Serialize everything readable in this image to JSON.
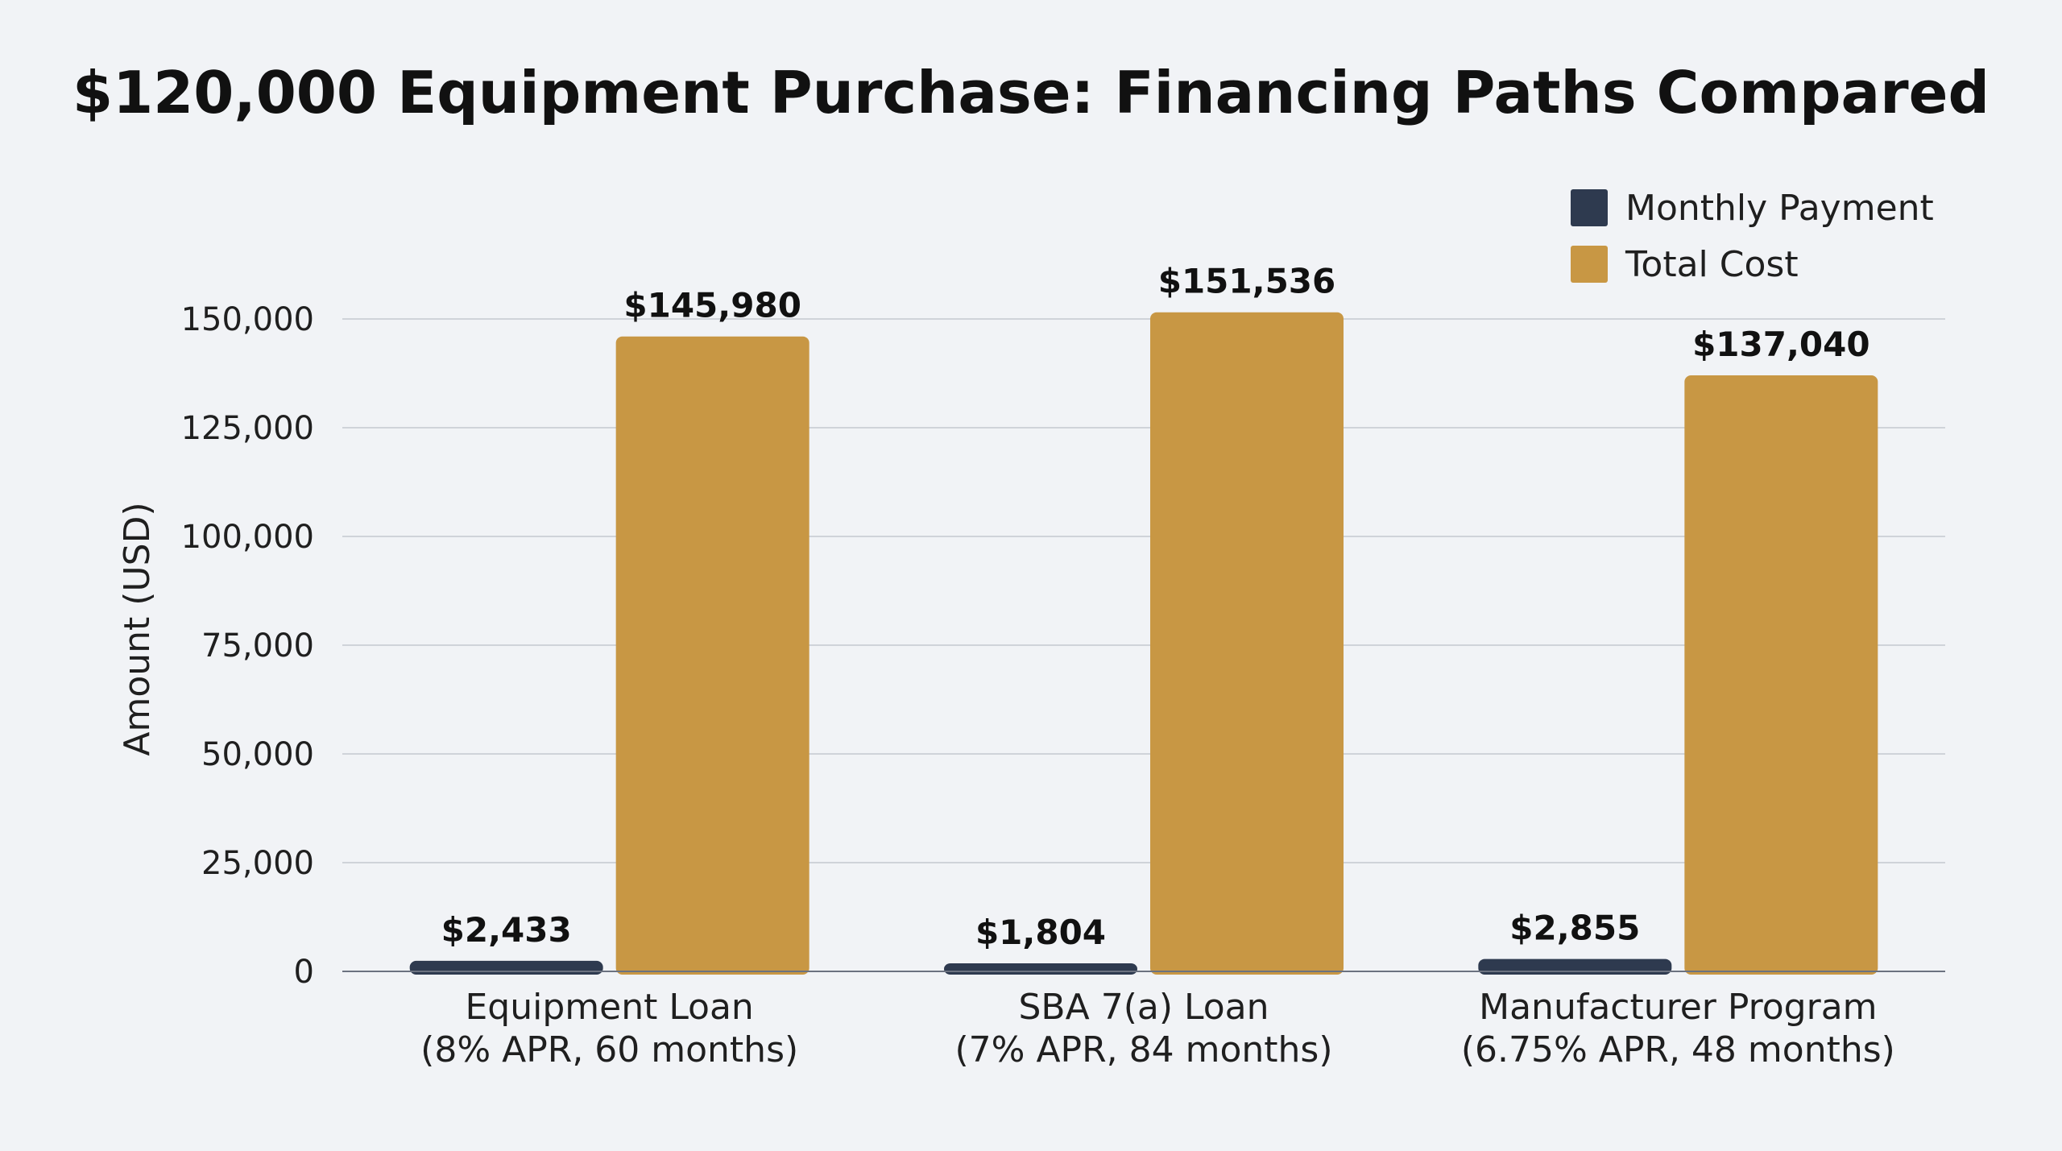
{
  "chart_data": {
    "type": "bar",
    "title": "$120,000 Equipment Purchase: Financing Paths Compared",
    "xlabel": "",
    "ylabel": "Amount (USD)",
    "ylim": [
      0,
      150000
    ],
    "yticks": [
      0,
      25000,
      50000,
      75000,
      100000,
      125000,
      150000
    ],
    "ytick_labels": [
      "0",
      "25,000",
      "50,000",
      "75,000",
      "100,000",
      "125,000",
      "150,000"
    ],
    "grid": true,
    "legend_position": "top-right",
    "categories": [
      [
        "Equipment Loan",
        "(8% APR, 60 months)"
      ],
      [
        "SBA 7(a) Loan",
        "(7% APR, 84 months)"
      ],
      [
        "Manufacturer Program",
        "(6.75% APR, 48 months)"
      ]
    ],
    "series": [
      {
        "name": "Monthly Payment",
        "color": "#2e3a4f",
        "values": [
          2433,
          1804,
          2855
        ],
        "labels": [
          "$2,433",
          "$1,804",
          "$2,855"
        ]
      },
      {
        "name": "Total Cost",
        "color": "#c89744",
        "values": [
          145980,
          151536,
          137040
        ],
        "labels": [
          "$145,980",
          "$151,536",
          "$137,040"
        ]
      }
    ]
  }
}
